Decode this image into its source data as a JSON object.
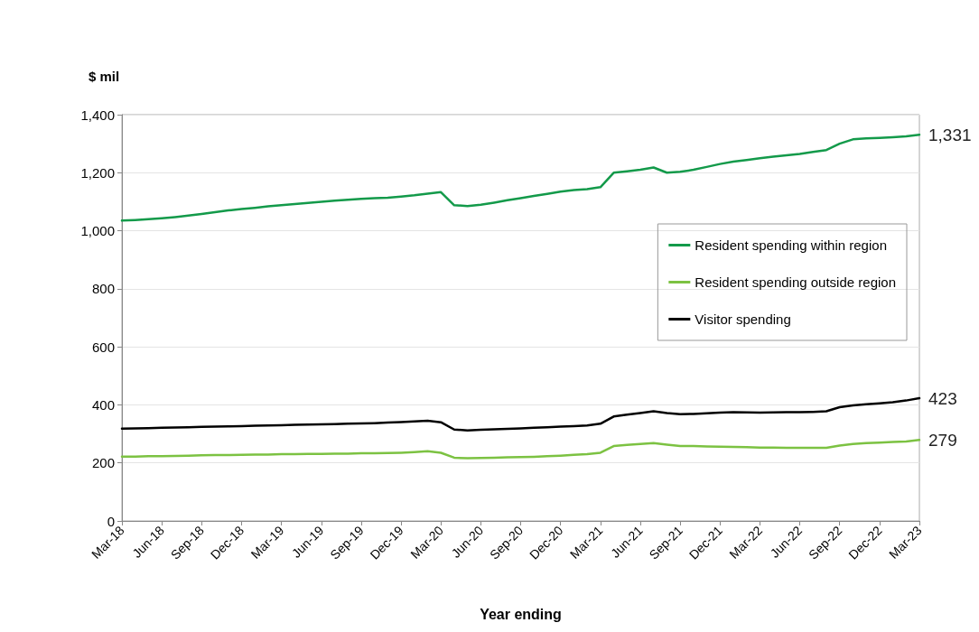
{
  "chart_data": {
    "type": "line",
    "ylabel": "$ mil",
    "xlabel": "Year ending",
    "categories": [
      "Mar-18",
      null,
      null,
      "Jun-18",
      null,
      null,
      "Sep-18",
      null,
      null,
      "Dec-18",
      null,
      null,
      "Mar-19",
      null,
      null,
      "Jun-19",
      null,
      null,
      "Sep-19",
      null,
      null,
      "Dec-19",
      null,
      null,
      "Mar-20",
      null,
      null,
      "Jun-20",
      null,
      null,
      "Sep-20",
      null,
      null,
      "Dec-20",
      null,
      null,
      "Mar-21",
      null,
      null,
      "Jun-21",
      null,
      null,
      "Sep-21",
      null,
      null,
      "Dec-21",
      null,
      null,
      "Mar-22",
      null,
      null,
      "Jun-22",
      null,
      null,
      "Sep-22",
      null,
      null,
      "Dec-22",
      null,
      null,
      "Mar-23"
    ],
    "series": [
      {
        "name": "Resident spending within region",
        "color": "#139a4a",
        "values": [
          1035,
          1037,
          1040,
          1043,
          1047,
          1052,
          1058,
          1064,
          1070,
          1075,
          1079,
          1084,
          1088,
          1092,
          1096,
          1100,
          1104,
          1107,
          1110,
          1112,
          1114,
          1118,
          1122,
          1128,
          1133,
          1088,
          1085,
          1090,
          1097,
          1105,
          1112,
          1120,
          1127,
          1135,
          1140,
          1143,
          1150,
          1200,
          1205,
          1210,
          1218,
          1200,
          1203,
          1210,
          1220,
          1230,
          1238,
          1244,
          1250,
          1255,
          1260,
          1265,
          1272,
          1278,
          1300,
          1315,
          1318,
          1320,
          1322,
          1325,
          1331
        ],
        "value_labels": [
          null,
          null,
          null,
          null,
          null,
          null,
          null,
          null,
          null,
          null,
          null,
          null,
          null,
          null,
          null,
          null,
          null,
          null,
          null,
          null,
          null,
          null,
          null,
          null,
          null,
          null,
          null,
          null,
          null,
          null,
          null,
          null,
          null,
          null,
          null,
          null,
          null,
          null,
          null,
          null,
          null,
          null,
          null,
          null,
          null,
          null,
          null,
          null,
          null,
          null,
          null,
          null,
          null,
          null,
          null,
          null,
          null,
          null,
          null,
          null,
          "1,331"
        ]
      },
      {
        "name": "Resident spending outside region",
        "color": "#7cc242",
        "values": [
          222,
          222,
          223,
          223,
          224,
          225,
          226,
          227,
          227,
          228,
          229,
          229,
          230,
          230,
          231,
          231,
          232,
          232,
          233,
          233,
          234,
          235,
          237,
          240,
          235,
          218,
          216,
          217,
          218,
          219,
          220,
          221,
          223,
          225,
          228,
          230,
          235,
          258,
          262,
          265,
          268,
          263,
          258,
          258,
          257,
          256,
          255,
          254,
          253,
          253,
          252,
          252,
          252,
          252,
          260,
          265,
          268,
          270,
          272,
          274,
          279
        ],
        "value_labels": [
          null,
          null,
          null,
          null,
          null,
          null,
          null,
          null,
          null,
          null,
          null,
          null,
          null,
          null,
          null,
          null,
          null,
          null,
          null,
          null,
          null,
          null,
          null,
          null,
          null,
          null,
          null,
          null,
          null,
          null,
          null,
          null,
          null,
          null,
          null,
          null,
          null,
          null,
          null,
          null,
          null,
          null,
          null,
          null,
          null,
          null,
          null,
          null,
          null,
          null,
          null,
          null,
          null,
          null,
          null,
          null,
          null,
          null,
          null,
          null,
          "279"
        ]
      },
      {
        "name": "Visitor spending",
        "color": "#000000",
        "values": [
          318,
          319,
          320,
          321,
          322,
          323,
          324,
          325,
          326,
          327,
          328,
          329,
          330,
          331,
          332,
          333,
          334,
          335,
          336,
          337,
          339,
          341,
          343,
          345,
          340,
          315,
          312,
          314,
          316,
          317,
          319,
          321,
          323,
          325,
          327,
          329,
          335,
          360,
          366,
          372,
          378,
          372,
          368,
          369,
          371,
          373,
          375,
          374,
          373,
          374,
          375,
          375,
          376,
          378,
          392,
          398,
          402,
          405,
          409,
          415,
          423
        ],
        "value_labels": [
          null,
          null,
          null,
          null,
          null,
          null,
          null,
          null,
          null,
          null,
          null,
          null,
          null,
          null,
          null,
          null,
          null,
          null,
          null,
          null,
          null,
          null,
          null,
          null,
          null,
          null,
          null,
          null,
          null,
          null,
          null,
          null,
          null,
          null,
          null,
          null,
          null,
          null,
          null,
          null,
          null,
          null,
          null,
          null,
          null,
          null,
          null,
          null,
          null,
          null,
          null,
          null,
          null,
          null,
          null,
          null,
          null,
          null,
          null,
          null,
          "423"
        ]
      }
    ],
    "ylim": [
      0,
      1400
    ],
    "yticks": [
      {
        "value": 0,
        "label": "0"
      },
      {
        "value": 200,
        "label": "200"
      },
      {
        "value": 400,
        "label": "400"
      },
      {
        "value": 600,
        "label": "600"
      },
      {
        "value": 800,
        "label": "800"
      },
      {
        "value": 1000,
        "label": "1,000"
      },
      {
        "value": 1200,
        "label": "1,200"
      },
      {
        "value": 1400,
        "label": "1,400"
      }
    ],
    "grid": "y",
    "legend": "right",
    "marker": "none",
    "line_style": "solid"
  }
}
